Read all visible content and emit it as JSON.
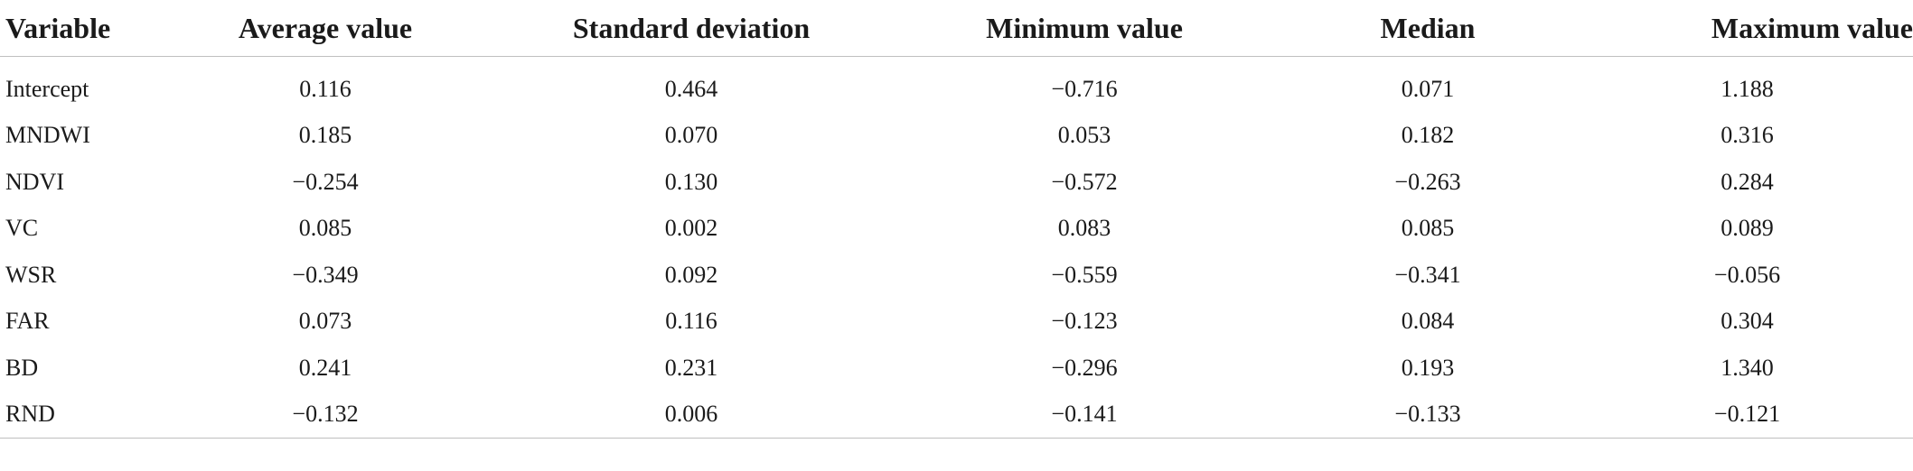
{
  "table": {
    "headers": [
      "Variable",
      "Average value",
      "Standard deviation",
      "Minimum value",
      "Median",
      "Maximum value"
    ],
    "rows": [
      [
        "Intercept",
        "0.116",
        "0.464",
        "−0.716",
        "0.071",
        "1.188"
      ],
      [
        "MNDWI",
        "0.185",
        "0.070",
        "0.053",
        "0.182",
        "0.316"
      ],
      [
        "NDVI",
        "−0.254",
        "0.130",
        "−0.572",
        "−0.263",
        "0.284"
      ],
      [
        "VC",
        "0.085",
        "0.002",
        "0.083",
        "0.085",
        "0.089"
      ],
      [
        "WSR",
        "−0.349",
        "0.092",
        "−0.559",
        "−0.341",
        "−0.056"
      ],
      [
        "FAR",
        "0.073",
        "0.116",
        "−0.123",
        "0.084",
        "0.304"
      ],
      [
        "BD",
        "0.241",
        "0.231",
        "−0.296",
        "0.193",
        "1.340"
      ],
      [
        "RND",
        "−0.132",
        "0.006",
        "−0.141",
        "−0.133",
        "−0.121"
      ]
    ]
  }
}
